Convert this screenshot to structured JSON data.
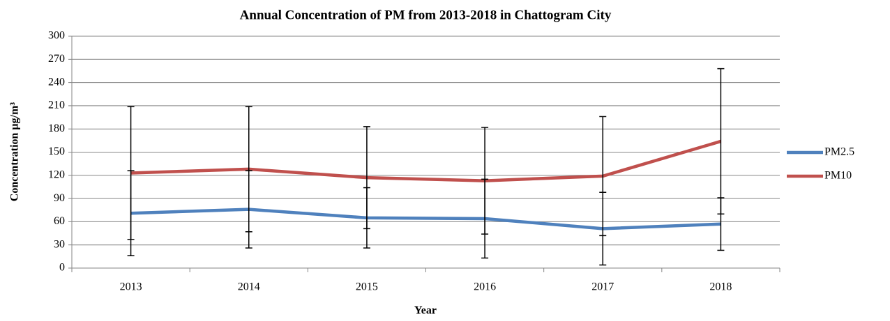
{
  "chart_data": {
    "type": "line",
    "title": "Annual Concentration of PM from 2013-2018 in Chattogram City",
    "x_label": "Year",
    "y_label": "Concentration µg/m³",
    "categories": [
      "2013",
      "2014",
      "2015",
      "2016",
      "2017",
      "2018"
    ],
    "series": [
      {
        "name": "PM2.5",
        "color": "#4f81bd",
        "values": [
          71,
          76,
          65,
          64,
          51,
          57
        ],
        "errors": [
          55,
          50,
          39,
          51,
          47,
          34
        ]
      },
      {
        "name": "PM10",
        "color": "#c0504d",
        "values": [
          123,
          128,
          117,
          113,
          119,
          164
        ],
        "errors": [
          86,
          81,
          66,
          69,
          77,
          94
        ]
      }
    ],
    "ylim": [
      0,
      300
    ],
    "yticks": [
      0,
      30,
      60,
      90,
      120,
      150,
      180,
      210,
      240,
      270,
      300
    ],
    "grid": true,
    "legend": "right"
  }
}
